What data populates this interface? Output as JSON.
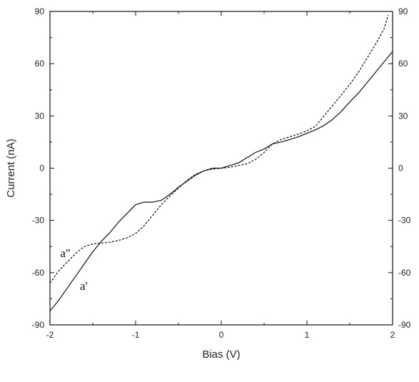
{
  "chart_data": {
    "type": "line",
    "title": "",
    "xlabel": "Bias (V)",
    "ylabel": "Current (nA)",
    "xlim": [
      -2,
      2
    ],
    "ylim": [
      -90,
      90
    ],
    "xticks": [
      -2,
      -1,
      0,
      1,
      2
    ],
    "yticks": [
      -90,
      -60,
      -30,
      0,
      30,
      60,
      90
    ],
    "right_axis_ticks": true,
    "grid": false,
    "legend": "none",
    "series": [
      {
        "name": "a'",
        "style": "solid",
        "color": "#111111",
        "x": [
          -2.0,
          -1.9,
          -1.8,
          -1.7,
          -1.6,
          -1.5,
          -1.4,
          -1.3,
          -1.2,
          -1.1,
          -1.0,
          -0.9,
          -0.8,
          -0.7,
          -0.6,
          -0.5,
          -0.4,
          -0.3,
          -0.2,
          -0.1,
          0.0,
          0.1,
          0.2,
          0.3,
          0.4,
          0.5,
          0.6,
          0.7,
          0.8,
          0.9,
          1.0,
          1.1,
          1.2,
          1.3,
          1.4,
          1.5,
          1.6,
          1.7,
          1.8,
          1.9,
          2.0
        ],
        "y": [
          -82,
          -76,
          -69,
          -62,
          -55,
          -48,
          -42,
          -37,
          -31,
          -26,
          -21,
          -19.5,
          -19.5,
          -18.5,
          -15,
          -11,
          -7.5,
          -4,
          -1.5,
          0,
          0,
          1.5,
          3,
          6,
          9,
          11,
          14,
          15,
          16.5,
          18,
          20,
          22,
          24.5,
          28,
          32.5,
          38,
          43,
          49,
          55,
          61,
          67
        ]
      },
      {
        "name": "a\"",
        "style": "dashed",
        "color": "#111111",
        "x": [
          -2.0,
          -1.9,
          -1.8,
          -1.7,
          -1.6,
          -1.5,
          -1.4,
          -1.3,
          -1.2,
          -1.1,
          -1.0,
          -0.9,
          -0.8,
          -0.7,
          -0.6,
          -0.5,
          -0.4,
          -0.3,
          -0.2,
          -0.1,
          0.0,
          0.1,
          0.2,
          0.3,
          0.4,
          0.5,
          0.6,
          0.7,
          0.8,
          0.9,
          1.0,
          1.1,
          1.2,
          1.3,
          1.4,
          1.5,
          1.6,
          1.7,
          1.8,
          1.9,
          1.95
        ],
        "y": [
          -66,
          -59,
          -54,
          -49,
          -45,
          -43.5,
          -43,
          -42.5,
          -41.5,
          -40,
          -37.5,
          -33,
          -27,
          -21,
          -16,
          -11.5,
          -7,
          -3.5,
          -1.5,
          -0.5,
          0,
          0.5,
          1.5,
          2.5,
          5,
          9,
          14,
          16.5,
          18,
          19.5,
          21.5,
          24,
          30,
          36,
          42,
          48,
          55,
          63,
          71,
          80,
          88
        ]
      }
    ],
    "annotations": [
      {
        "text": "a\"",
        "x": -1.88,
        "y": -51
      },
      {
        "text": "a'",
        "x": -1.65,
        "y": -70
      }
    ]
  }
}
